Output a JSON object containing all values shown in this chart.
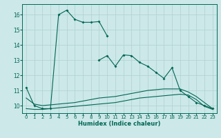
{
  "xlabel": "Humidex (Indice chaleur)",
  "bg_color": "#cce8e8",
  "grid_color": "#b0d0d0",
  "line_color": "#006655",
  "xlim": [
    -0.5,
    23.5
  ],
  "ylim": [
    9.5,
    16.7
  ],
  "xticks": [
    0,
    1,
    2,
    3,
    4,
    5,
    6,
    7,
    8,
    9,
    10,
    11,
    12,
    13,
    14,
    15,
    16,
    17,
    18,
    19,
    20,
    21,
    22,
    23
  ],
  "yticks": [
    10,
    11,
    12,
    13,
    14,
    15,
    16
  ],
  "series1_x": [
    0,
    1,
    2,
    3,
    4,
    5,
    6,
    7,
    8,
    9,
    10
  ],
  "series1_y": [
    11.2,
    10.0,
    9.8,
    9.8,
    16.0,
    16.3,
    15.7,
    15.5,
    15.5,
    15.55,
    14.6
  ],
  "series2_x": [
    9,
    10,
    11,
    12,
    13,
    14,
    15,
    16,
    17,
    18,
    19,
    20,
    21,
    22,
    23
  ],
  "series2_y": [
    13.0,
    13.3,
    12.6,
    13.35,
    13.3,
    12.85,
    12.6,
    12.2,
    11.8,
    12.5,
    11.0,
    10.6,
    10.2,
    10.0,
    9.8
  ],
  "series3_x": [
    0,
    1,
    2,
    3,
    4,
    5,
    6,
    7,
    8,
    9,
    10,
    11,
    12,
    13,
    14,
    15,
    16,
    17,
    18,
    19,
    20,
    21,
    22,
    23
  ],
  "series3_y": [
    10.5,
    10.1,
    10.0,
    10.05,
    10.1,
    10.15,
    10.2,
    10.3,
    10.4,
    10.5,
    10.55,
    10.6,
    10.7,
    10.8,
    10.9,
    11.0,
    11.05,
    11.1,
    11.1,
    11.1,
    10.9,
    10.6,
    10.2,
    9.8
  ],
  "series4_x": [
    0,
    1,
    2,
    3,
    4,
    5,
    6,
    7,
    8,
    9,
    10,
    11,
    12,
    13,
    14,
    15,
    16,
    17,
    18,
    19,
    20,
    21,
    22,
    23
  ],
  "series4_y": [
    9.8,
    9.75,
    9.75,
    9.8,
    9.85,
    9.9,
    9.95,
    10.0,
    10.05,
    10.1,
    10.15,
    10.2,
    10.3,
    10.4,
    10.5,
    10.55,
    10.6,
    10.65,
    10.7,
    10.75,
    10.7,
    10.4,
    9.95,
    9.75
  ]
}
